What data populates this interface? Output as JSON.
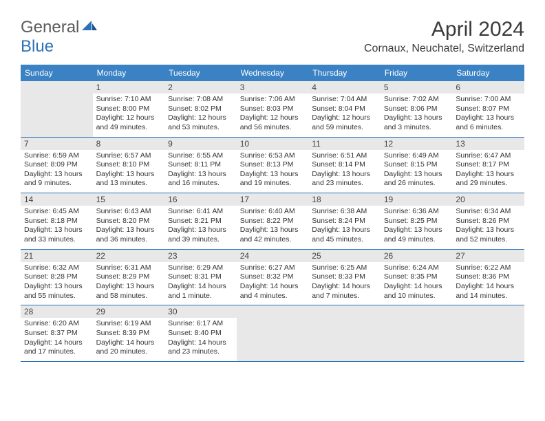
{
  "logo": {
    "text1": "General",
    "text2": "Blue"
  },
  "title": "April 2024",
  "location": "Cornaux, Neuchatel, Switzerland",
  "colors": {
    "header_bg": "#3a82c4",
    "border": "#2d72b5",
    "blank_bg": "#e8e8e8",
    "daynum_bg": "#e8e8e8",
    "logo_gray": "#5a5a5a",
    "logo_blue": "#2d72b5"
  },
  "weekdays": [
    "Sunday",
    "Monday",
    "Tuesday",
    "Wednesday",
    "Thursday",
    "Friday",
    "Saturday"
  ],
  "weeks": [
    [
      {
        "blank": true
      },
      {
        "day": "1",
        "sunrise": "Sunrise: 7:10 AM",
        "sunset": "Sunset: 8:00 PM",
        "daylight": "Daylight: 12 hours and 49 minutes."
      },
      {
        "day": "2",
        "sunrise": "Sunrise: 7:08 AM",
        "sunset": "Sunset: 8:02 PM",
        "daylight": "Daylight: 12 hours and 53 minutes."
      },
      {
        "day": "3",
        "sunrise": "Sunrise: 7:06 AM",
        "sunset": "Sunset: 8:03 PM",
        "daylight": "Daylight: 12 hours and 56 minutes."
      },
      {
        "day": "4",
        "sunrise": "Sunrise: 7:04 AM",
        "sunset": "Sunset: 8:04 PM",
        "daylight": "Daylight: 12 hours and 59 minutes."
      },
      {
        "day": "5",
        "sunrise": "Sunrise: 7:02 AM",
        "sunset": "Sunset: 8:06 PM",
        "daylight": "Daylight: 13 hours and 3 minutes."
      },
      {
        "day": "6",
        "sunrise": "Sunrise: 7:00 AM",
        "sunset": "Sunset: 8:07 PM",
        "daylight": "Daylight: 13 hours and 6 minutes."
      }
    ],
    [
      {
        "day": "7",
        "sunrise": "Sunrise: 6:59 AM",
        "sunset": "Sunset: 8:09 PM",
        "daylight": "Daylight: 13 hours and 9 minutes."
      },
      {
        "day": "8",
        "sunrise": "Sunrise: 6:57 AM",
        "sunset": "Sunset: 8:10 PM",
        "daylight": "Daylight: 13 hours and 13 minutes."
      },
      {
        "day": "9",
        "sunrise": "Sunrise: 6:55 AM",
        "sunset": "Sunset: 8:11 PM",
        "daylight": "Daylight: 13 hours and 16 minutes."
      },
      {
        "day": "10",
        "sunrise": "Sunrise: 6:53 AM",
        "sunset": "Sunset: 8:13 PM",
        "daylight": "Daylight: 13 hours and 19 minutes."
      },
      {
        "day": "11",
        "sunrise": "Sunrise: 6:51 AM",
        "sunset": "Sunset: 8:14 PM",
        "daylight": "Daylight: 13 hours and 23 minutes."
      },
      {
        "day": "12",
        "sunrise": "Sunrise: 6:49 AM",
        "sunset": "Sunset: 8:15 PM",
        "daylight": "Daylight: 13 hours and 26 minutes."
      },
      {
        "day": "13",
        "sunrise": "Sunrise: 6:47 AM",
        "sunset": "Sunset: 8:17 PM",
        "daylight": "Daylight: 13 hours and 29 minutes."
      }
    ],
    [
      {
        "day": "14",
        "sunrise": "Sunrise: 6:45 AM",
        "sunset": "Sunset: 8:18 PM",
        "daylight": "Daylight: 13 hours and 33 minutes."
      },
      {
        "day": "15",
        "sunrise": "Sunrise: 6:43 AM",
        "sunset": "Sunset: 8:20 PM",
        "daylight": "Daylight: 13 hours and 36 minutes."
      },
      {
        "day": "16",
        "sunrise": "Sunrise: 6:41 AM",
        "sunset": "Sunset: 8:21 PM",
        "daylight": "Daylight: 13 hours and 39 minutes."
      },
      {
        "day": "17",
        "sunrise": "Sunrise: 6:40 AM",
        "sunset": "Sunset: 8:22 PM",
        "daylight": "Daylight: 13 hours and 42 minutes."
      },
      {
        "day": "18",
        "sunrise": "Sunrise: 6:38 AM",
        "sunset": "Sunset: 8:24 PM",
        "daylight": "Daylight: 13 hours and 45 minutes."
      },
      {
        "day": "19",
        "sunrise": "Sunrise: 6:36 AM",
        "sunset": "Sunset: 8:25 PM",
        "daylight": "Daylight: 13 hours and 49 minutes."
      },
      {
        "day": "20",
        "sunrise": "Sunrise: 6:34 AM",
        "sunset": "Sunset: 8:26 PM",
        "daylight": "Daylight: 13 hours and 52 minutes."
      }
    ],
    [
      {
        "day": "21",
        "sunrise": "Sunrise: 6:32 AM",
        "sunset": "Sunset: 8:28 PM",
        "daylight": "Daylight: 13 hours and 55 minutes."
      },
      {
        "day": "22",
        "sunrise": "Sunrise: 6:31 AM",
        "sunset": "Sunset: 8:29 PM",
        "daylight": "Daylight: 13 hours and 58 minutes."
      },
      {
        "day": "23",
        "sunrise": "Sunrise: 6:29 AM",
        "sunset": "Sunset: 8:31 PM",
        "daylight": "Daylight: 14 hours and 1 minute."
      },
      {
        "day": "24",
        "sunrise": "Sunrise: 6:27 AM",
        "sunset": "Sunset: 8:32 PM",
        "daylight": "Daylight: 14 hours and 4 minutes."
      },
      {
        "day": "25",
        "sunrise": "Sunrise: 6:25 AM",
        "sunset": "Sunset: 8:33 PM",
        "daylight": "Daylight: 14 hours and 7 minutes."
      },
      {
        "day": "26",
        "sunrise": "Sunrise: 6:24 AM",
        "sunset": "Sunset: 8:35 PM",
        "daylight": "Daylight: 14 hours and 10 minutes."
      },
      {
        "day": "27",
        "sunrise": "Sunrise: 6:22 AM",
        "sunset": "Sunset: 8:36 PM",
        "daylight": "Daylight: 14 hours and 14 minutes."
      }
    ],
    [
      {
        "day": "28",
        "sunrise": "Sunrise: 6:20 AM",
        "sunset": "Sunset: 8:37 PM",
        "daylight": "Daylight: 14 hours and 17 minutes."
      },
      {
        "day": "29",
        "sunrise": "Sunrise: 6:19 AM",
        "sunset": "Sunset: 8:39 PM",
        "daylight": "Daylight: 14 hours and 20 minutes."
      },
      {
        "day": "30",
        "sunrise": "Sunrise: 6:17 AM",
        "sunset": "Sunset: 8:40 PM",
        "daylight": "Daylight: 14 hours and 23 minutes."
      },
      {
        "blank": true
      },
      {
        "blank": true
      },
      {
        "blank": true
      },
      {
        "blank": true
      }
    ]
  ]
}
